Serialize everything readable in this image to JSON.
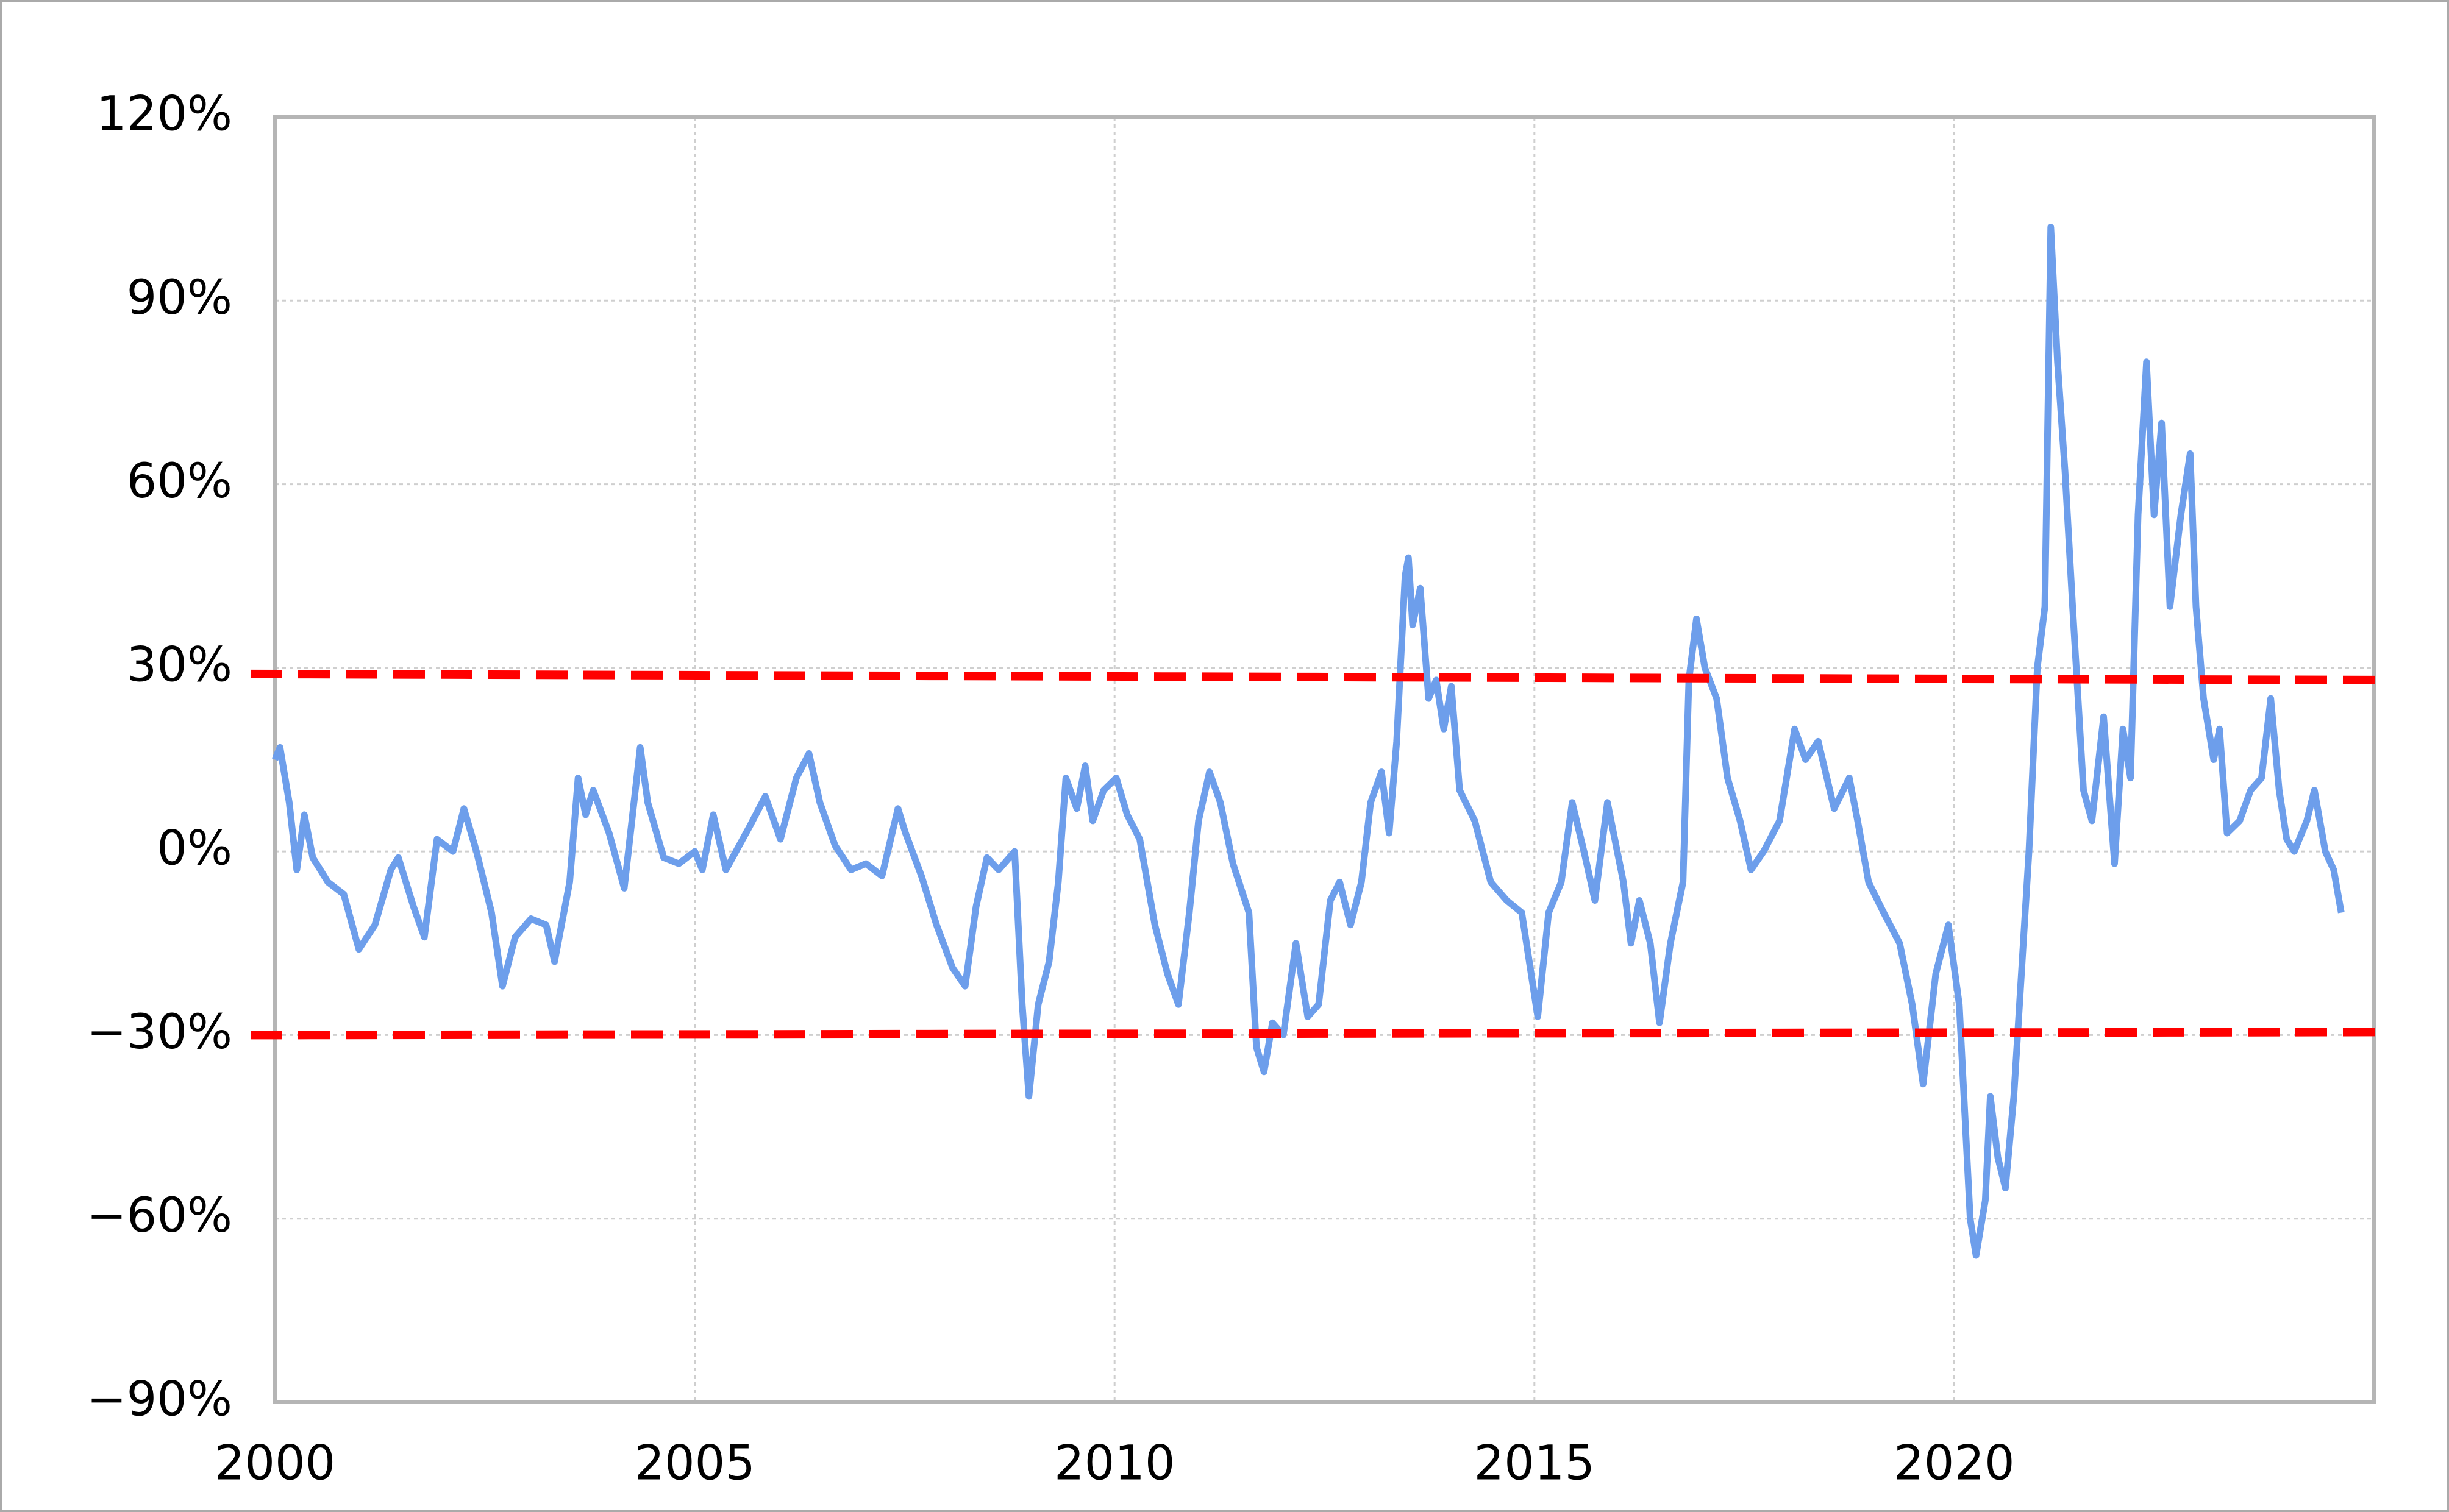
{
  "chart_data": {
    "type": "line",
    "x": [
      2000.0,
      2000.06,
      2000.17,
      2000.26,
      2000.35,
      2000.45,
      2000.63,
      2000.82,
      2001.0,
      2001.19,
      2001.38,
      2001.47,
      2001.65,
      2001.78,
      2001.93,
      2002.12,
      2002.25,
      2002.4,
      2002.58,
      2002.71,
      2002.86,
      2003.05,
      2003.23,
      2003.33,
      2003.51,
      2003.61,
      2003.7,
      2003.79,
      2003.98,
      2004.16,
      2004.35,
      2004.44,
      2004.63,
      2004.81,
      2005.0,
      2005.09,
      2005.22,
      2005.37,
      2005.65,
      2005.84,
      2006.02,
      2006.21,
      2006.36,
      2006.49,
      2006.67,
      2006.86,
      2007.04,
      2007.23,
      2007.42,
      2007.51,
      2007.7,
      2007.88,
      2008.07,
      2008.22,
      2008.35,
      2008.48,
      2008.62,
      2008.81,
      2008.9,
      2008.98,
      2009.09,
      2009.22,
      2009.33,
      2009.42,
      2009.55,
      2009.65,
      2009.74,
      2009.87,
      2010.02,
      2010.15,
      2010.3,
      2010.48,
      2010.63,
      2010.76,
      2010.89,
      2011.0,
      2011.13,
      2011.26,
      2011.41,
      2011.6,
      2011.69,
      2011.78,
      2011.88,
      2012.01,
      2012.16,
      2012.3,
      2012.43,
      2012.57,
      2012.68,
      2012.81,
      2012.94,
      2013.05,
      2013.18,
      2013.27,
      2013.36,
      2013.46,
      2013.5,
      2013.55,
      2013.64,
      2013.74,
      2013.83,
      2013.92,
      2014.01,
      2014.11,
      2014.29,
      2014.48,
      2014.67,
      2014.85,
      2015.04,
      2015.17,
      2015.32,
      2015.45,
      2015.59,
      2015.72,
      2015.87,
      2016.06,
      2016.15,
      2016.25,
      2016.38,
      2016.49,
      2016.62,
      2016.77,
      2016.84,
      2016.93,
      2017.03,
      2017.17,
      2017.3,
      2017.45,
      2017.58,
      2017.73,
      2017.92,
      2018.1,
      2018.23,
      2018.38,
      2018.57,
      2018.75,
      2018.85,
      2018.98,
      2019.16,
      2019.35,
      2019.5,
      2019.63,
      2019.78,
      2019.93,
      2020.06,
      2020.19,
      2020.26,
      2020.37,
      2020.43,
      2020.52,
      2020.61,
      2020.71,
      2020.8,
      2020.89,
      2020.99,
      2021.08,
      2021.15,
      2021.23,
      2021.32,
      2021.41,
      2021.54,
      2021.64,
      2021.78,
      2021.91,
      2022.01,
      2022.1,
      2022.19,
      2022.29,
      2022.38,
      2022.47,
      2022.57,
      2022.7,
      2022.81,
      2022.88,
      2022.97,
      2023.09,
      2023.16,
      2023.25,
      2023.4,
      2023.53,
      2023.66,
      2023.77,
      2023.87,
      2023.96,
      2024.05,
      2024.2,
      2024.29,
      2024.42,
      2024.52,
      2024.61
    ],
    "series": [
      {
        "color": "#6d9eeb",
        "values": [
          15,
          17,
          8,
          -3,
          6,
          -1,
          -5,
          -7,
          -16,
          -12,
          -3,
          -1,
          -9,
          -14,
          2,
          0,
          7,
          0,
          -10,
          -22,
          -14,
          -11,
          -12,
          -18,
          -5,
          12,
          6,
          10,
          3,
          -6,
          17,
          8,
          -1,
          -2,
          0,
          -3,
          6,
          -3,
          4,
          9,
          2,
          12,
          16,
          8,
          1,
          -3,
          -2,
          -4,
          7,
          3,
          -4,
          -12,
          -19,
          -22,
          -9,
          -1,
          -3,
          0,
          -25,
          -40,
          -25,
          -18,
          -5,
          12,
          7,
          14,
          5,
          10,
          12,
          6,
          2,
          -12,
          -20,
          -25,
          -10,
          5,
          13,
          8,
          -2,
          -10,
          -32,
          -36,
          -28,
          -30,
          -15,
          -27,
          -25,
          -8,
          -5,
          -12,
          -5,
          8,
          13,
          3,
          18,
          45,
          48,
          37,
          43,
          25,
          28,
          20,
          27,
          10,
          5,
          -5,
          -8,
          -10,
          -27,
          -10,
          -5,
          8,
          0,
          -8,
          8,
          -5,
          -15,
          -8,
          -15,
          -28,
          -15,
          -5,
          28,
          38,
          30,
          25,
          12,
          5,
          -3,
          0,
          5,
          20,
          15,
          18,
          7,
          12,
          5,
          -5,
          -10,
          -15,
          -25,
          -38,
          -20,
          -12,
          -25,
          -60,
          -66,
          -57,
          -40,
          -50,
          -55,
          -40,
          -20,
          0,
          30,
          40,
          102,
          80,
          62,
          40,
          10,
          5,
          22,
          -2,
          20,
          12,
          55,
          80,
          55,
          70,
          40,
          55,
          65,
          40,
          25,
          15,
          20,
          3,
          5,
          10,
          12,
          25,
          10,
          2,
          0,
          5,
          10,
          0,
          -3,
          -10
        ]
      }
    ],
    "xlim": [
      2000,
      2025
    ],
    "xticks": [
      2000,
      2005,
      2010,
      2015,
      2020
    ],
    "ylim": [
      -90,
      120
    ],
    "yticks": [
      {
        "value": -90,
        "label": "−90%"
      },
      {
        "value": -60,
        "label": "−60%"
      },
      {
        "value": -30,
        "label": "−30%"
      },
      {
        "value": 0,
        "label": "0%"
      },
      {
        "value": 30,
        "label": "30%"
      },
      {
        "value": 60,
        "label": "60%"
      },
      {
        "value": 90,
        "label": "90%"
      },
      {
        "value": 120,
        "label": "120%"
      }
    ],
    "negative_tick_color": "#cc0000",
    "grid": true,
    "reference_lines": [
      {
        "y_start": 29,
        "y_end": 28,
        "color": "#ff0000"
      },
      {
        "y_start": -30,
        "y_end": -29.5,
        "color": "#ff0000"
      }
    ]
  }
}
